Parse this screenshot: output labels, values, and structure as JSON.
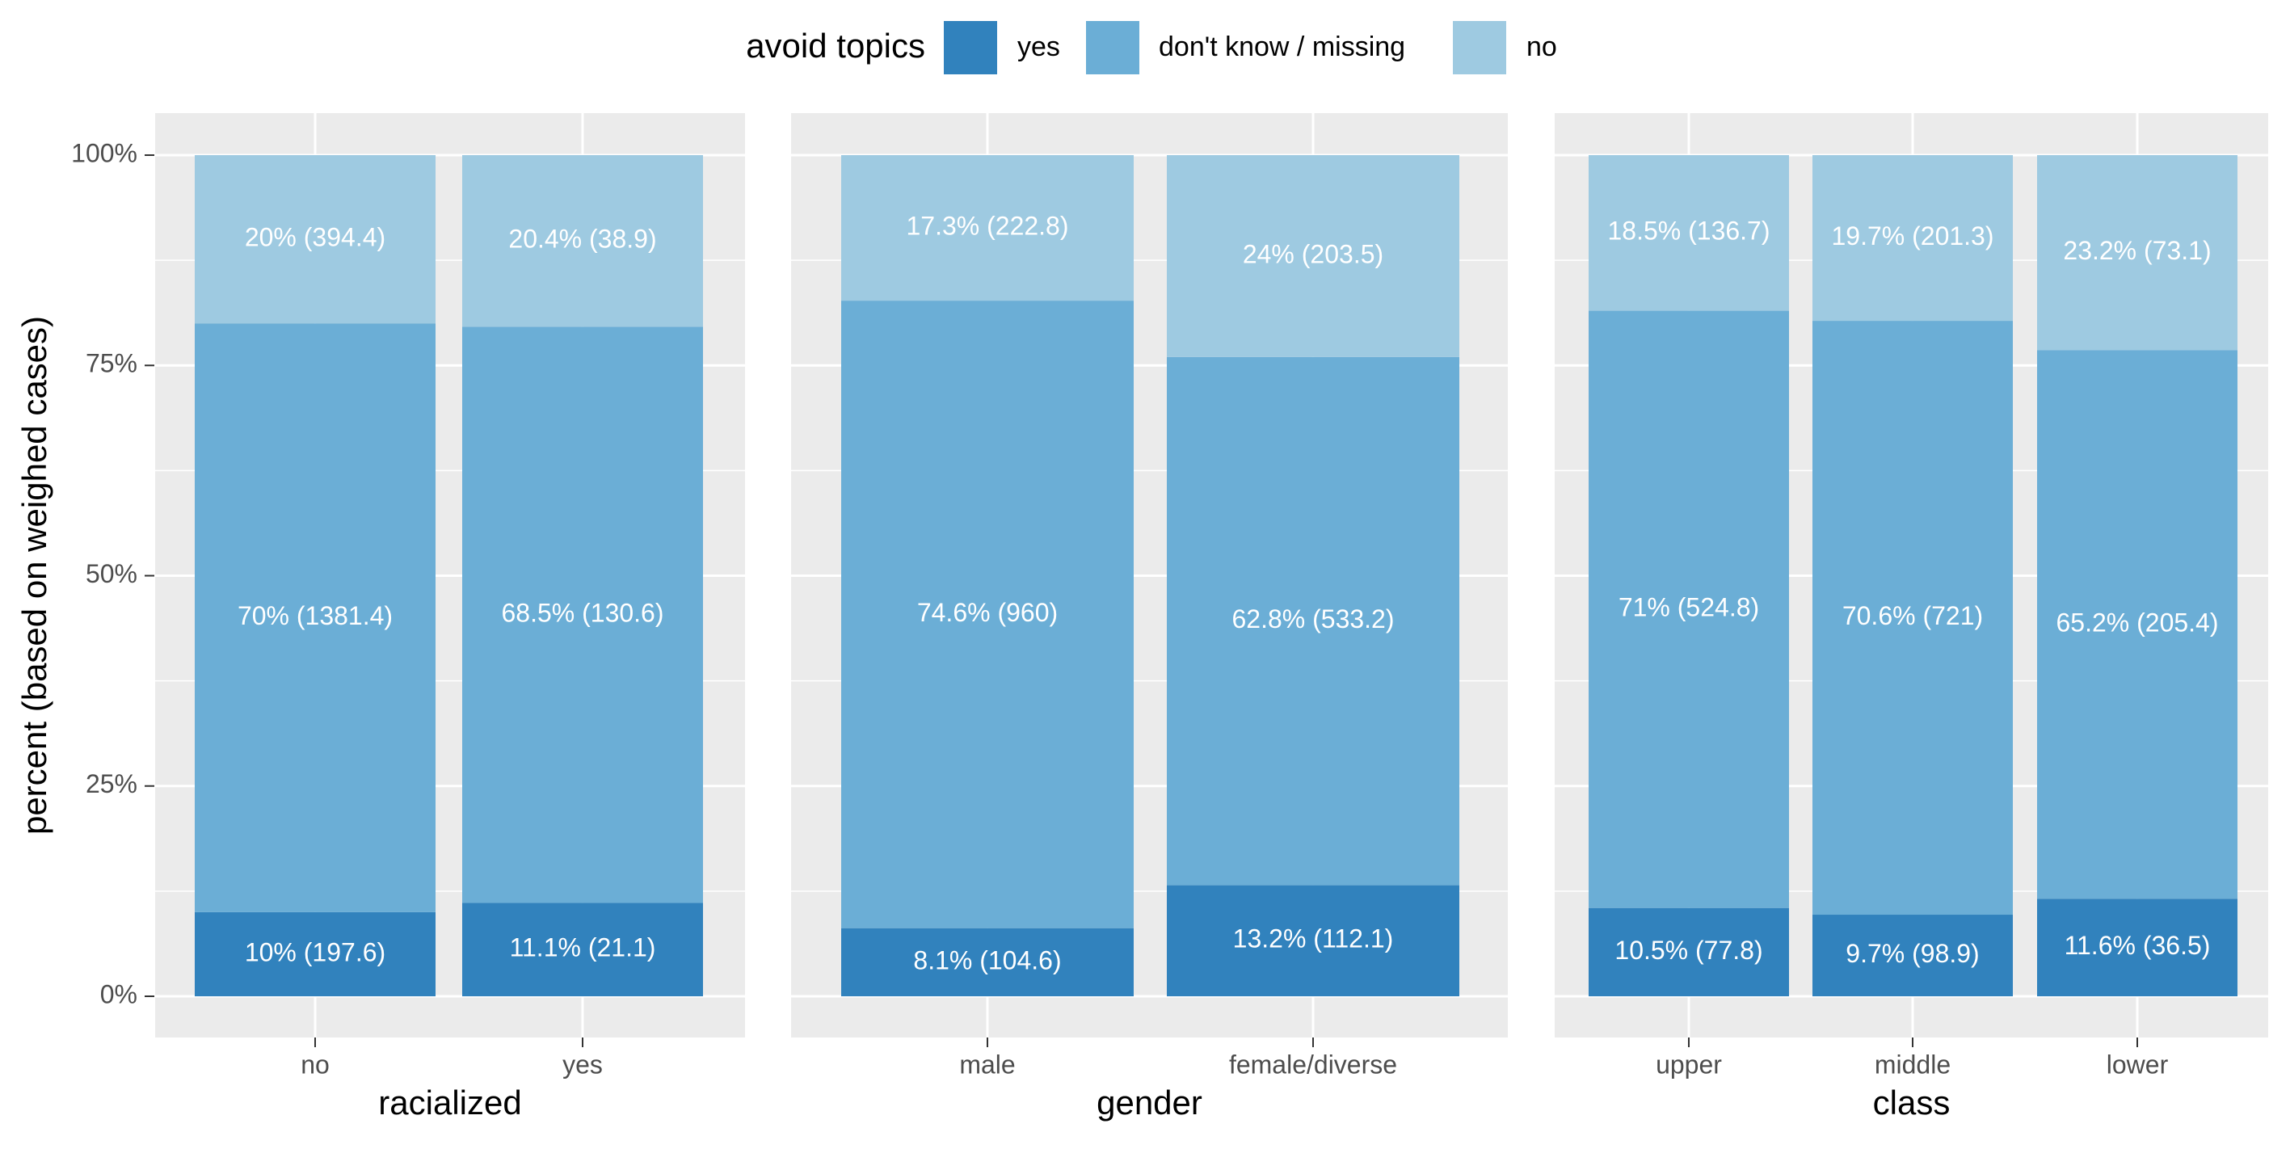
{
  "legend": {
    "title": "avoid topics",
    "items": [
      {
        "label": "yes",
        "color": "#3182bd"
      },
      {
        "label": "don't know / missing",
        "color": "#6baed6"
      },
      {
        "label": "no",
        "color": "#9ecae1"
      }
    ]
  },
  "chart_data": {
    "type": "bar",
    "stacked": true,
    "ylabel": "percent (based on weighed cases)",
    "ylim": [
      0,
      100
    ],
    "yticks": [
      "0%",
      "25%",
      "50%",
      "75%",
      "100%"
    ],
    "grid": true,
    "legend_position": "top",
    "series": [
      {
        "name": "yes",
        "color": "#3182bd"
      },
      {
        "name": "don't know / missing",
        "color": "#6baed6"
      },
      {
        "name": "no",
        "color": "#9ecae1"
      }
    ],
    "panels": [
      {
        "xlabel": "racialized",
        "categories": [
          "no",
          "yes"
        ],
        "values": {
          "yes": [
            10,
            11.1
          ],
          "don't know / missing": [
            70,
            68.5
          ],
          "no": [
            20,
            20.4
          ]
        },
        "labels": {
          "yes": [
            "10% (197.6)",
            "11.1% (21.1)"
          ],
          "don't know / missing": [
            "70% (1381.4)",
            "68.5% (130.6)"
          ],
          "no": [
            "20% (394.4)",
            "20.4% (38.9)"
          ]
        }
      },
      {
        "xlabel": "gender",
        "categories": [
          "male",
          "female/diverse"
        ],
        "values": {
          "yes": [
            8.1,
            13.2
          ],
          "don't know / missing": [
            74.6,
            62.8
          ],
          "no": [
            17.3,
            24
          ]
        },
        "labels": {
          "yes": [
            "8.1% (104.6)",
            "13.2% (112.1)"
          ],
          "don't know / missing": [
            "74.6% (960)",
            "62.8% (533.2)"
          ],
          "no": [
            "17.3% (222.8)",
            "24% (203.5)"
          ]
        }
      },
      {
        "xlabel": "class",
        "categories": [
          "upper",
          "middle",
          "lower"
        ],
        "values": {
          "yes": [
            10.5,
            9.7,
            11.6
          ],
          "don't know / missing": [
            71,
            70.6,
            65.2
          ],
          "no": [
            18.5,
            19.7,
            23.2
          ]
        },
        "labels": {
          "yes": [
            "10.5% (77.8)",
            "9.7% (98.9)",
            "11.6% (36.5)"
          ],
          "don't know / missing": [
            "71% (524.8)",
            "70.6% (721)",
            "65.2% (205.4)"
          ],
          "no": [
            "18.5% (136.7)",
            "19.7% (201.3)",
            "23.2% (73.1)"
          ]
        }
      }
    ]
  }
}
